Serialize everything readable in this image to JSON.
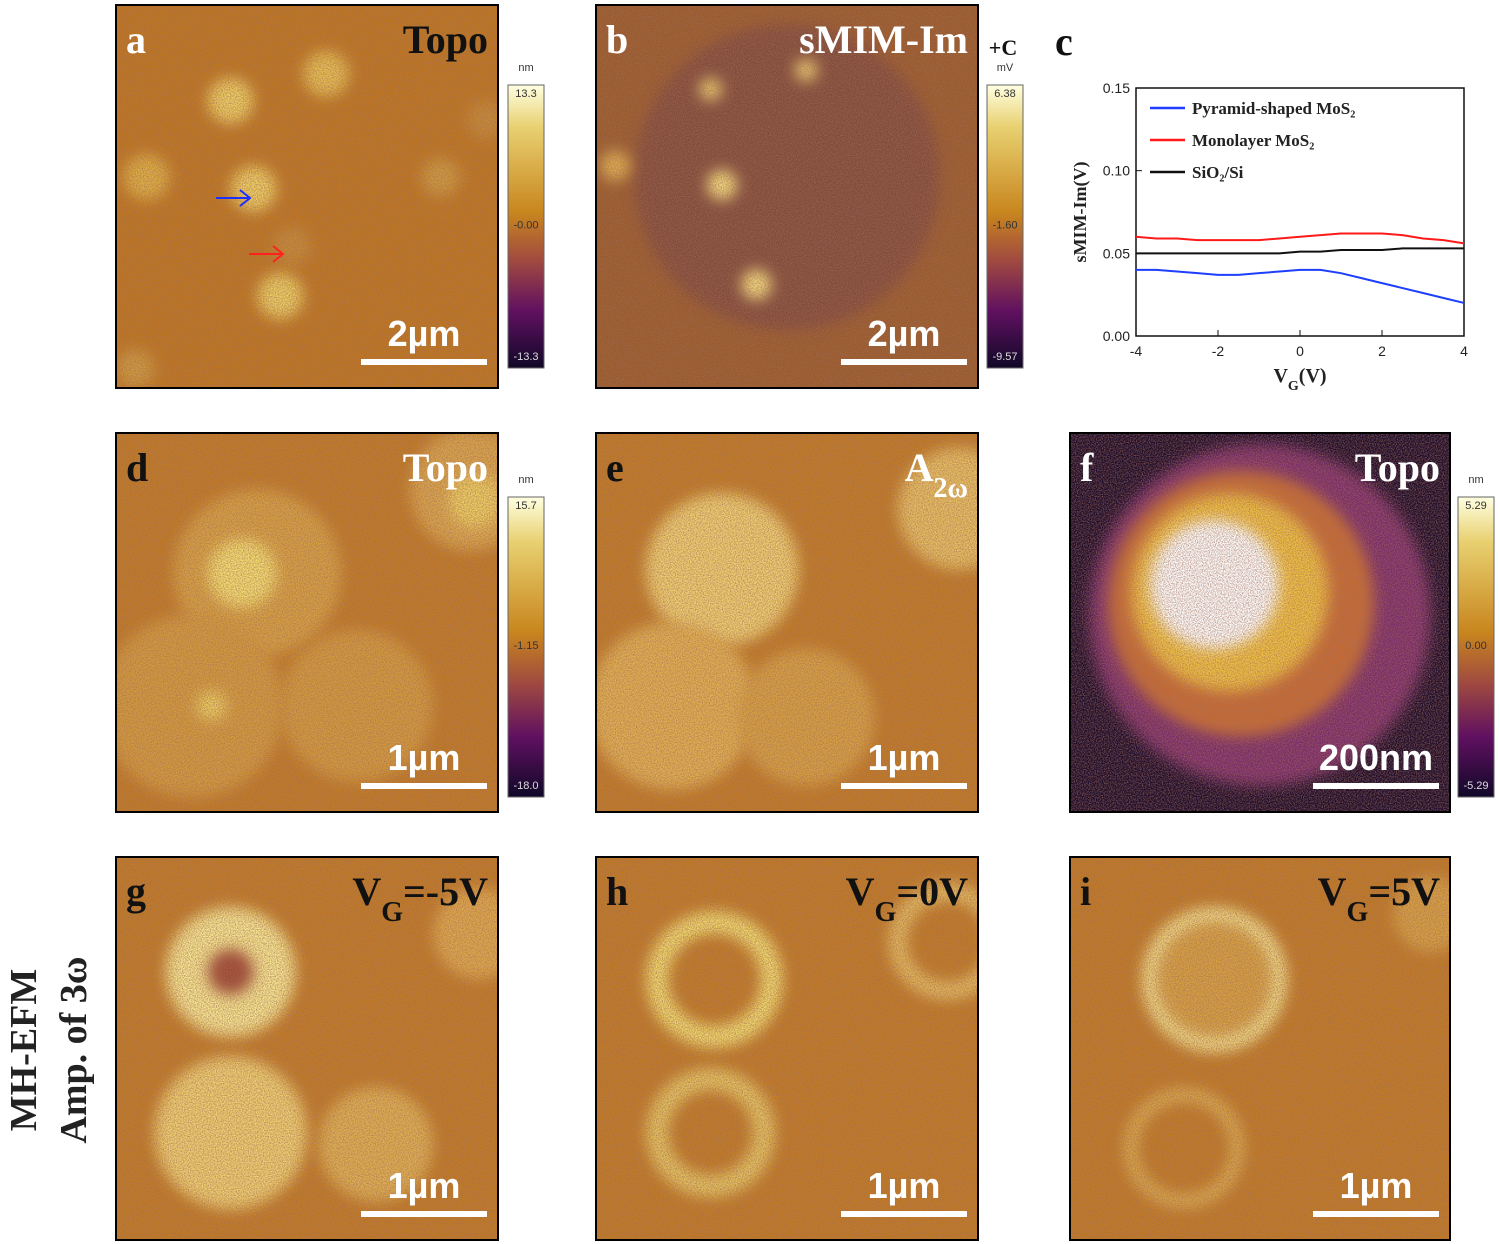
{
  "panels": [
    {
      "letter": "a",
      "title": "Topo",
      "scalebar": "2µm",
      "colorbar": {
        "unit": "nm",
        "ticks": [
          "13.3",
          "-0.00",
          "-13.3"
        ]
      }
    },
    {
      "letter": "b",
      "title": "sMIM-Im",
      "extra": "+C",
      "scalebar": "2µm",
      "colorbar": {
        "unit": "mV",
        "ticks": [
          "6.38",
          "-1.60",
          "-9.57"
        ]
      }
    },
    {
      "letter": "d",
      "title": "Topo",
      "scalebar": "1µm",
      "colorbar": {
        "unit": "nm",
        "ticks": [
          "15.7",
          "-1.15",
          "-18.0"
        ]
      }
    },
    {
      "letter": "e",
      "title": {
        "main": "A",
        "sub": "2ω"
      },
      "scalebar": "1µm"
    },
    {
      "letter": "f",
      "title": "Topo",
      "scalebar": "200nm",
      "colorbar": {
        "unit": "nm",
        "ticks": [
          "5.29",
          "0.00",
          "-5.29"
        ]
      }
    },
    {
      "letter": "g",
      "title": {
        "main": "V",
        "sub": "G",
        "after": "=-5V"
      },
      "scalebar": "1µm"
    },
    {
      "letter": "h",
      "title": {
        "main": "V",
        "sub": "G",
        "after": "=0V"
      },
      "scalebar": "1µm"
    },
    {
      "letter": "i",
      "title": {
        "main": "V",
        "sub": "G",
        "after": "=5V"
      },
      "scalebar": "1µm"
    }
  ],
  "panel_c": {
    "letter": "c"
  },
  "side_label": [
    "MH-EFM",
    "Amp. of 3ω"
  ],
  "chart_data": {
    "type": "line",
    "xlabel": {
      "main": "V",
      "sub": "G",
      "after": "(V)"
    },
    "ylabel": "sMIM-Im(V)",
    "x": [
      -4,
      -3.5,
      -3,
      -2.5,
      -2,
      -1.5,
      -1,
      -0.5,
      0,
      0.5,
      1,
      1.5,
      2,
      2.5,
      3,
      3.5,
      4
    ],
    "xlim": [
      -4,
      4
    ],
    "xticks": [
      -4,
      -2,
      0,
      2,
      4
    ],
    "ylim": [
      0,
      0.15
    ],
    "yticks": [
      {
        "value": 0,
        "label": "0.00"
      },
      {
        "value": 0.05,
        "label": "0.05"
      },
      {
        "value": 0.1,
        "label": "0.10"
      },
      {
        "value": 0.15,
        "label": "0.15"
      }
    ],
    "series": [
      {
        "name": "Pyramid-shaped MoS₂",
        "color": "#1f3fff",
        "values": [
          0.04,
          0.04,
          0.039,
          0.038,
          0.037,
          0.037,
          0.038,
          0.039,
          0.04,
          0.04,
          0.038,
          0.035,
          0.032,
          0.029,
          0.026,
          0.023,
          0.02
        ]
      },
      {
        "name": "Monolayer MoS₂",
        "color": "#ff1a1a",
        "values": [
          0.06,
          0.059,
          0.059,
          0.058,
          0.058,
          0.058,
          0.058,
          0.059,
          0.06,
          0.061,
          0.062,
          0.062,
          0.062,
          0.061,
          0.059,
          0.058,
          0.056
        ]
      },
      {
        "name": "SiO₂/Si",
        "color": "#111111",
        "values": [
          0.05,
          0.05,
          0.05,
          0.05,
          0.05,
          0.05,
          0.05,
          0.05,
          0.051,
          0.051,
          0.052,
          0.052,
          0.052,
          0.053,
          0.053,
          0.053,
          0.053
        ]
      }
    ]
  }
}
